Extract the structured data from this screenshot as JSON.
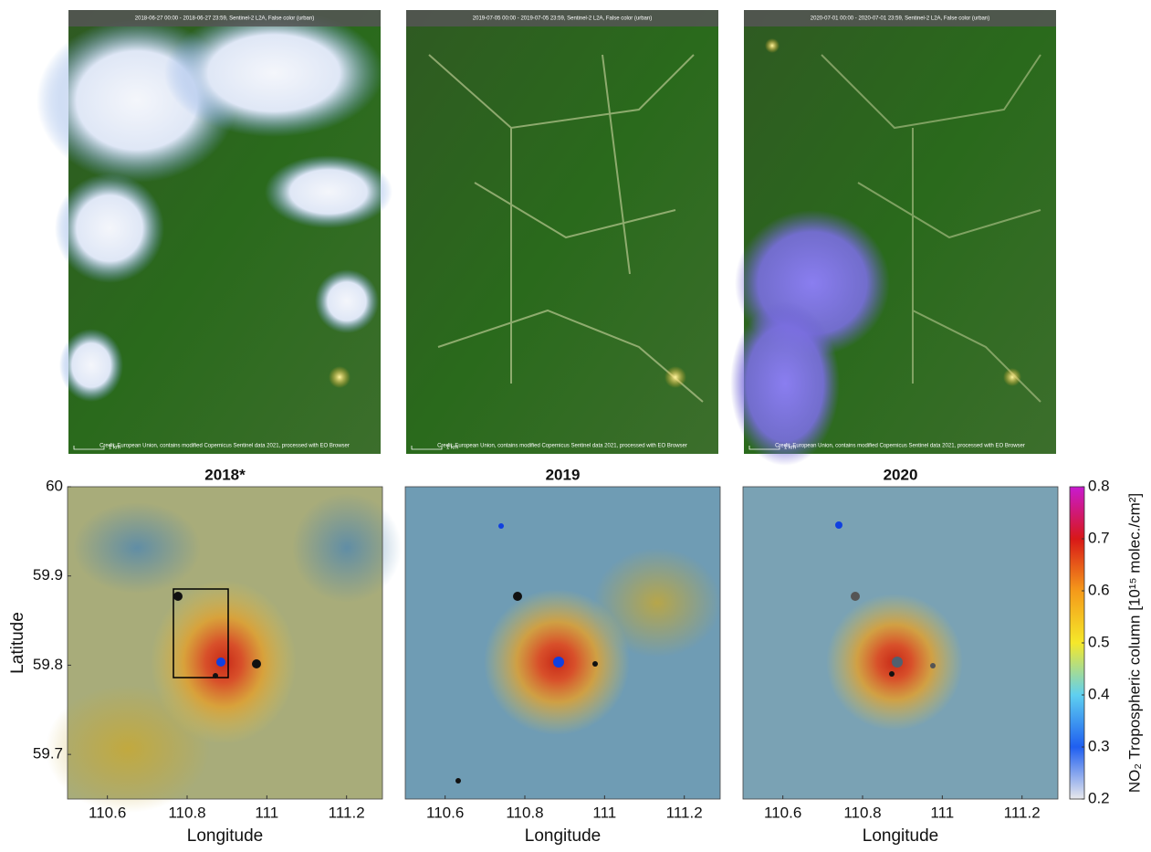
{
  "images": [
    {
      "header": "2018-06-27 00:00 - 2018-06-27 23:59, Sentinel-2 L2A, False color (urban)",
      "scale": "1 km",
      "credit": "Credit: European Union, contains modified Copernicus Sentinel data 2021, processed with EO Browser"
    },
    {
      "header": "2019-07-05 00:00 - 2019-07-05 23:59, Sentinel-2 L2A, False color (urban)",
      "scale": "1 km",
      "credit": "Credit: European Union, contains modified Copernicus Sentinel data 2021, processed with EO Browser"
    },
    {
      "header": "2020-07-01 00:00 - 2020-07-01 23:59, Sentinel-2 L2A, False color (urban)",
      "scale": "1 km",
      "credit": "Credit: European Union, contains modified Copernicus Sentinel data 2021, processed with EO Browser"
    }
  ],
  "chart_data": [
    {
      "type": "heatmap",
      "title": "2018*",
      "xlabel": "Longitude",
      "ylabel": "Latitude",
      "xlim": [
        110.5,
        111.29
      ],
      "ylim": [
        59.65,
        60
      ],
      "xticks": [
        110.6,
        110.8,
        111,
        111.2
      ],
      "yticks": [
        59.7,
        59.8,
        59.9,
        60
      ]
    },
    {
      "type": "heatmap",
      "title": "2019",
      "xlabel": "Longitude",
      "xlim": [
        110.5,
        111.29
      ],
      "ylim": [
        59.65,
        60
      ],
      "xticks": [
        110.6,
        110.8,
        111,
        111.2
      ]
    },
    {
      "type": "heatmap",
      "title": "2020",
      "xlabel": "Longitude",
      "xlim": [
        110.5,
        111.29
      ],
      "ylim": [
        59.65,
        60
      ],
      "xticks": [
        110.6,
        110.8,
        111,
        111.2
      ]
    }
  ],
  "colorbar": {
    "label": "NO₂ Tropospheric column [10¹⁵ molec./cm²]",
    "lim": [
      0.2,
      0.8
    ],
    "ticks": [
      0.2,
      0.3,
      0.4,
      0.5,
      0.6,
      0.7,
      0.8
    ],
    "colors": [
      "#e8e8ec",
      "#1f5ff0",
      "#5fd0f0",
      "#f5e82a",
      "#f59a1a",
      "#d81818",
      "#c81ad0"
    ]
  }
}
